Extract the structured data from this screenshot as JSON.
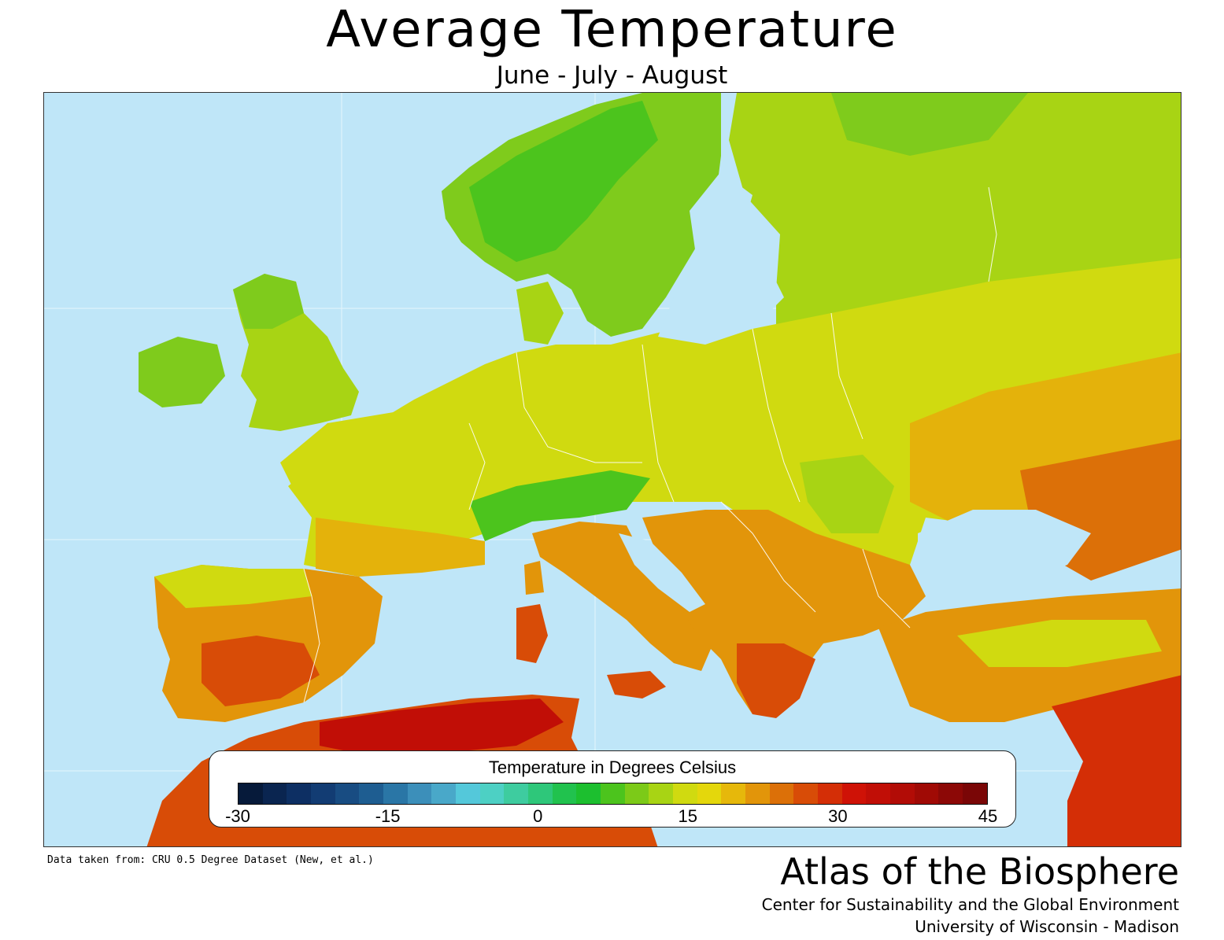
{
  "title": "Average  Temperature",
  "subtitle": "June - July - August",
  "legend": {
    "title": "Temperature in Degrees Celsius",
    "ticks": [
      "-30",
      "-15",
      "0",
      "15",
      "30",
      "45"
    ],
    "colors": [
      "#061a3a",
      "#0a2550",
      "#0d2f63",
      "#123c73",
      "#184c82",
      "#1e5d91",
      "#2a76a6",
      "#3c8fba",
      "#49a8c9",
      "#54c8da",
      "#4dd0c4",
      "#3ecc9f",
      "#2ec77a",
      "#21c24e",
      "#1cbf2f",
      "#4cc41d",
      "#7cca18",
      "#a8d414",
      "#d0da10",
      "#e4d70c",
      "#e6b80b",
      "#e2950a",
      "#dc7008",
      "#d84c07",
      "#d42e06",
      "#cf1206",
      "#c10e06",
      "#b20c06",
      "#a00a05",
      "#8c0806",
      "#7a0606"
    ]
  },
  "source": "Data taken from: CRU 0.5 Degree Dataset (New, et al.)",
  "brand": {
    "title": "Atlas of the Biosphere",
    "line1": "Center for Sustainability and the Global Environment",
    "line2": "University of Wisconsin - Madison"
  },
  "map": {
    "region": "Europe",
    "water_color": "#bfe6f8",
    "border_color": "#ffffff"
  }
}
